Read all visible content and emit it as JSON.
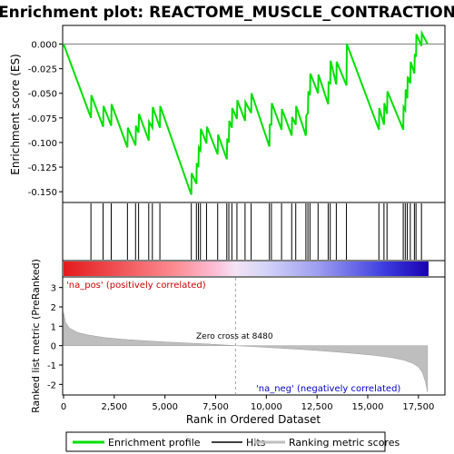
{
  "chart_data": {
    "type": "line",
    "title": "Enrichment plot: REACTOME_MUSCLE_CONTRACTION",
    "xlabel": "Rank in Ordered Dataset",
    "xlim": [
      0,
      18000
    ],
    "x_ticks": [
      0,
      2500,
      5000,
      7500,
      10000,
      12500,
      15000,
      17500
    ],
    "x_tick_labels": [
      "0",
      "2,500",
      "5,000",
      "7,500",
      "10,000",
      "12,500",
      "15,000",
      "17,500"
    ],
    "enrichment": {
      "ylabel": "Enrichment score (ES)",
      "ylim": [
        -0.16,
        0.018
      ],
      "y_ticks": [
        0.0,
        -0.025,
        -0.05,
        -0.075,
        -0.1,
        -0.125,
        -0.15
      ],
      "y_tick_labels": [
        "0.000",
        "-0.025",
        "-0.050",
        "-0.075",
        "-0.100",
        "-0.125",
        "-0.150"
      ],
      "color": "#00e000",
      "points": [
        [
          0,
          0.0
        ],
        [
          1350,
          -0.075
        ],
        [
          1370,
          -0.052
        ],
        [
          1950,
          -0.084
        ],
        [
          1970,
          -0.063
        ],
        [
          2350,
          -0.083
        ],
        [
          2370,
          -0.061
        ],
        [
          3150,
          -0.105
        ],
        [
          3170,
          -0.085
        ],
        [
          3550,
          -0.103
        ],
        [
          3570,
          -0.083
        ],
        [
          3700,
          -0.09
        ],
        [
          3720,
          -0.071
        ],
        [
          4200,
          -0.098
        ],
        [
          4220,
          -0.079
        ],
        [
          4380,
          -0.085
        ],
        [
          4400,
          -0.064
        ],
        [
          4750,
          -0.085
        ],
        [
          4770,
          -0.063
        ],
        [
          6300,
          -0.153
        ],
        [
          6320,
          -0.131
        ],
        [
          6550,
          -0.142
        ],
        [
          6570,
          -0.121
        ],
        [
          6650,
          -0.125
        ],
        [
          6670,
          -0.105
        ],
        [
          6750,
          -0.108
        ],
        [
          6770,
          -0.086
        ],
        [
          7050,
          -0.101
        ],
        [
          7070,
          -0.084
        ],
        [
          7600,
          -0.112
        ],
        [
          7620,
          -0.092
        ],
        [
          8050,
          -0.117
        ],
        [
          8070,
          -0.096
        ],
        [
          8150,
          -0.1
        ],
        [
          8170,
          -0.078
        ],
        [
          8300,
          -0.085
        ],
        [
          8320,
          -0.065
        ],
        [
          8550,
          -0.076
        ],
        [
          8570,
          -0.057
        ],
        [
          8950,
          -0.078
        ],
        [
          8970,
          -0.059
        ],
        [
          9250,
          -0.07
        ],
        [
          9270,
          -0.05
        ],
        [
          10150,
          -0.104
        ],
        [
          10170,
          -0.082
        ],
        [
          10250,
          -0.082
        ],
        [
          10270,
          -0.06
        ],
        [
          10750,
          -0.087
        ],
        [
          10770,
          -0.066
        ],
        [
          11250,
          -0.093
        ],
        [
          11270,
          -0.074
        ],
        [
          11450,
          -0.082
        ],
        [
          11470,
          -0.063
        ],
        [
          11950,
          -0.093
        ],
        [
          11970,
          -0.073
        ],
        [
          12050,
          -0.07
        ],
        [
          12070,
          -0.048
        ],
        [
          12150,
          -0.052
        ],
        [
          12170,
          -0.03
        ],
        [
          12550,
          -0.05
        ],
        [
          12570,
          -0.031
        ],
        [
          13050,
          -0.061
        ],
        [
          13070,
          -0.039
        ],
        [
          13150,
          -0.04
        ],
        [
          13170,
          -0.017
        ],
        [
          13450,
          -0.041
        ],
        [
          13470,
          -0.018
        ],
        [
          13950,
          -0.042
        ],
        [
          13970,
          0.0
        ],
        [
          15550,
          -0.087
        ],
        [
          15570,
          -0.065
        ],
        [
          15800,
          -0.082
        ],
        [
          15820,
          -0.06
        ],
        [
          15950,
          -0.071
        ],
        [
          15970,
          -0.048
        ],
        [
          16750,
          -0.087
        ],
        [
          16770,
          -0.064
        ],
        [
          16850,
          -0.067
        ],
        [
          16870,
          -0.046
        ],
        [
          16950,
          -0.055
        ],
        [
          16970,
          -0.033
        ],
        [
          17100,
          -0.04
        ],
        [
          17120,
          -0.018
        ],
        [
          17300,
          -0.03
        ],
        [
          17320,
          -0.01
        ],
        [
          17380,
          -0.013
        ],
        [
          17400,
          0.01
        ],
        [
          17650,
          -0.002
        ],
        [
          17670,
          0.011
        ],
        [
          17950,
          0.0
        ]
      ]
    },
    "hits": [
      1350,
      1950,
      2350,
      3150,
      3550,
      3700,
      4200,
      4380,
      4750,
      6300,
      6550,
      6650,
      6750,
      7050,
      7600,
      8050,
      8150,
      8300,
      8550,
      8950,
      9250,
      10150,
      10250,
      10750,
      11250,
      11450,
      11950,
      12050,
      12150,
      12550,
      13050,
      13150,
      13450,
      13950,
      15550,
      15800,
      15950,
      16750,
      16850,
      16950,
      17100,
      17300,
      17380,
      17650
    ],
    "metric": {
      "ylabel": "Ranked list metric (PreRanked)",
      "ylim": [
        -2.5,
        3.5
      ],
      "y_ticks": [
        3,
        2,
        1,
        0,
        -1,
        -2
      ],
      "y_tick_labels": [
        "3",
        "2",
        "1",
        "0",
        "-1",
        "-2"
      ],
      "zero_cross_label": "Zero cross at 8480",
      "zero_cross_rank": 8480,
      "pos_label": "'na_pos' (positively correlated)",
      "neg_label": "'na_neg' (negatively correlated)",
      "curve": [
        [
          0,
          1.7
        ],
        [
          100,
          1.2
        ],
        [
          300,
          0.9
        ],
        [
          700,
          0.68
        ],
        [
          1200,
          0.55
        ],
        [
          2000,
          0.42
        ],
        [
          3000,
          0.32
        ],
        [
          4000,
          0.25
        ],
        [
          5000,
          0.19
        ],
        [
          6000,
          0.14
        ],
        [
          7000,
          0.09
        ],
        [
          8000,
          0.03
        ],
        [
          8480,
          0.0
        ],
        [
          9500,
          -0.06
        ],
        [
          10500,
          -0.12
        ],
        [
          11500,
          -0.18
        ],
        [
          12500,
          -0.25
        ],
        [
          13500,
          -0.33
        ],
        [
          14500,
          -0.42
        ],
        [
          15500,
          -0.52
        ],
        [
          16200,
          -0.62
        ],
        [
          16800,
          -0.75
        ],
        [
          17200,
          -0.9
        ],
        [
          17500,
          -1.1
        ],
        [
          17700,
          -1.4
        ],
        [
          17850,
          -1.9
        ],
        [
          17950,
          -2.4
        ]
      ]
    },
    "legend": {
      "items": [
        "Enrichment profile",
        "Hits",
        "Ranking metric scores"
      ]
    },
    "colors": {
      "enrichment_line": "#00e000",
      "hit_line": "#000000",
      "metric_fill": "#bebebe",
      "pos_label": "#cc0000",
      "neg_label": "#0000cc",
      "zero_line": "#a0a0a0"
    }
  }
}
